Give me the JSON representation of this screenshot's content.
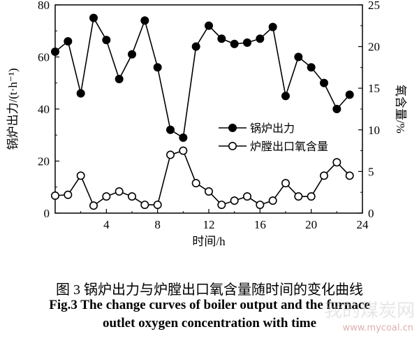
{
  "chart_data": {
    "type": "line",
    "xlabel": "时间/h",
    "ylabel_left": "锅炉出力/(t·h⁻¹)",
    "ylabel_right": "氧含量/%",
    "xlim": [
      0,
      24
    ],
    "xticks": [
      4,
      8,
      12,
      16,
      20,
      24
    ],
    "ylim_left": [
      0,
      80
    ],
    "yticks_left": [
      0,
      20,
      40,
      60,
      80
    ],
    "ylim_right": [
      0,
      25
    ],
    "yticks_right": [
      0,
      5,
      10,
      15,
      20,
      25
    ],
    "grid": false,
    "legend_position": "center-right",
    "series": [
      {
        "name": "锅炉出力",
        "axis": "left",
        "marker": "filled-circle",
        "x": [
          0,
          1,
          2,
          3,
          4,
          5,
          6,
          7,
          8,
          9,
          10,
          11,
          12,
          13,
          14,
          15,
          16,
          17,
          18,
          19,
          20,
          21,
          22,
          23
        ],
        "values": [
          62,
          66,
          46,
          75,
          66.5,
          51.5,
          61,
          74,
          56,
          32,
          29,
          64,
          72,
          67,
          65,
          65.5,
          67,
          71.5,
          45,
          60,
          56,
          50,
          40,
          45.5
        ]
      },
      {
        "name": "炉膛出口氧含量",
        "axis": "right",
        "marker": "open-circle",
        "x": [
          0,
          1,
          2,
          3,
          4,
          5,
          6,
          7,
          8,
          9,
          10,
          11,
          12,
          13,
          14,
          15,
          16,
          17,
          18,
          19,
          20,
          21,
          22,
          23
        ],
        "values": [
          2.1,
          2.2,
          4.5,
          0.9,
          2.0,
          2.6,
          2.0,
          1.0,
          1.0,
          7.0,
          7.5,
          3.6,
          2.6,
          1.0,
          1.5,
          2.0,
          1.0,
          1.5,
          3.6,
          2.0,
          2.0,
          4.5,
          6.1,
          4.5
        ]
      }
    ]
  },
  "caption": {
    "chinese": "图 3  锅炉出力与炉膛出口氧含量随时间的变化曲线",
    "english_line1": "Fig.3 The change curves of boiler output and the furnace",
    "english_line2": "outlet oxygen concentration with time"
  },
  "watermark": {
    "text": "我的煤炭网",
    "url": "www.mycoal.cn"
  }
}
